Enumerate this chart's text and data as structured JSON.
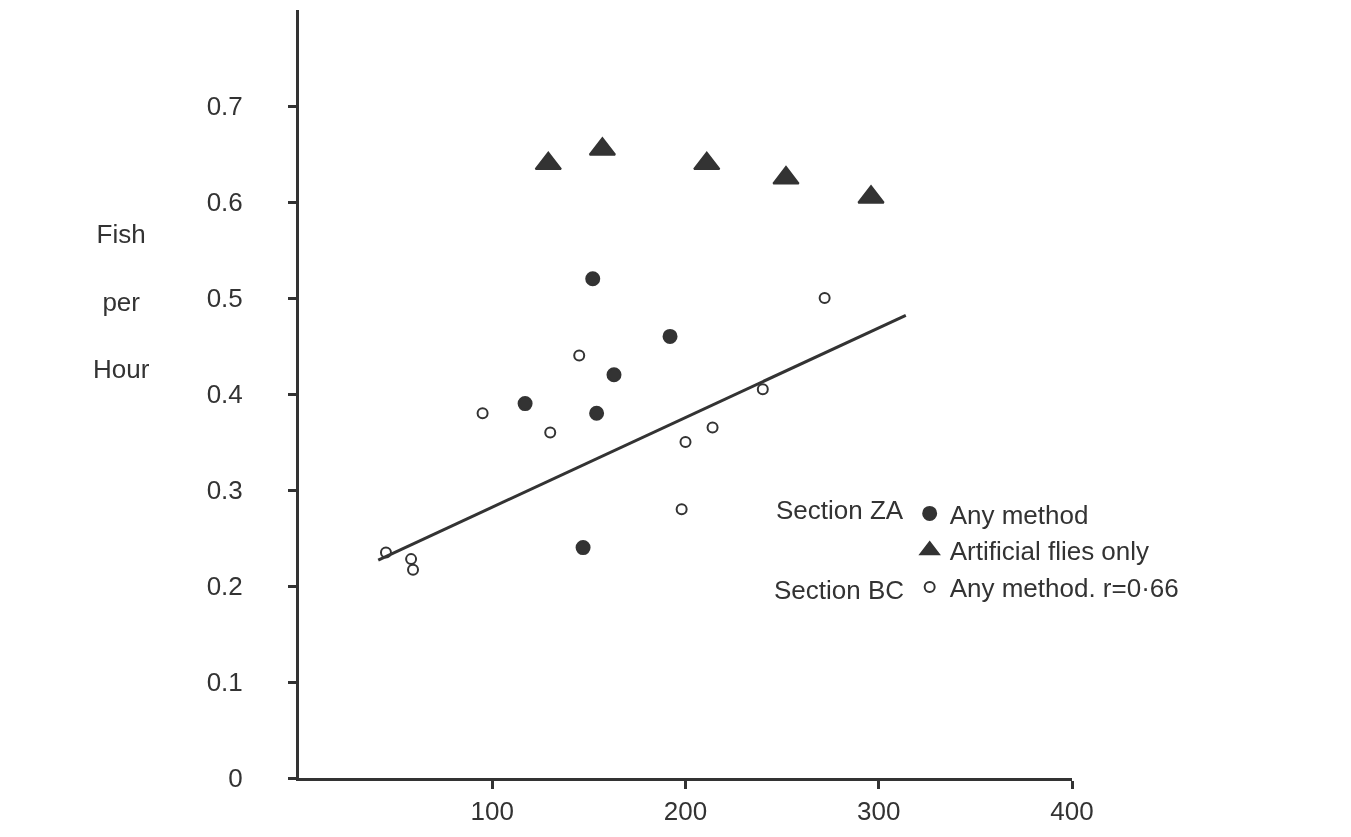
{
  "chart_data": {
    "type": "scatter",
    "ylabel": "Fish per Hour",
    "annotations": [
      "Section ZA",
      "Section BC"
    ],
    "xlim": [
      0,
      400
    ],
    "xticks": [
      100,
      200,
      300,
      400
    ],
    "ylim": [
      0,
      0.8
    ],
    "yticks": [
      0,
      0.1,
      0.2,
      0.3,
      0.4,
      0.5,
      0.6,
      0.7
    ],
    "grid": false,
    "legend": "bottom right",
    "series": [
      {
        "name": "Any method",
        "color": "#333333",
        "marker": "circle",
        "x": [
          152,
          192,
          163,
          117,
          154,
          147
        ],
        "values": [
          0.52,
          0.46,
          0.42,
          0.39,
          0.38,
          0.24
        ]
      },
      {
        "name": "Artificial flies only",
        "color": "#333333",
        "marker": "triangle",
        "x": [
          129,
          157,
          211,
          252,
          296
        ],
        "values": [
          0.64,
          0.655,
          0.64,
          0.625,
          0.605
        ]
      },
      {
        "name": "Any method. r=0·66",
        "color": "#ffffff",
        "marker": "circle",
        "x": [
          145,
          95,
          130,
          214,
          200,
          240,
          272,
          198,
          45,
          58,
          59
        ],
        "values": [
          0.44,
          0.38,
          0.36,
          0.365,
          0.35,
          0.405,
          0.5,
          0.28,
          0.235,
          0.228,
          0.217
        ]
      },
      {
        "type": "line",
        "color": "#333333",
        "marker": "none",
        "line_style": "solid",
        "x": [
          41,
          314
        ],
        "values": [
          0.227,
          0.482
        ]
      }
    ]
  }
}
